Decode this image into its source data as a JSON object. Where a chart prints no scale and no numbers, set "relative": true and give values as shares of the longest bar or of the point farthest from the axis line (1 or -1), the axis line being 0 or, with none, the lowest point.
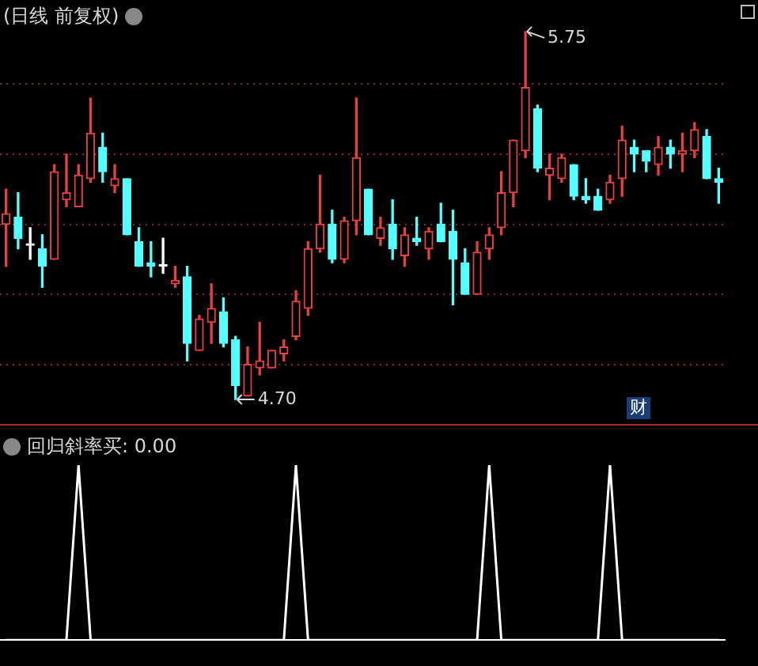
{
  "chart_data": [
    {
      "type": "candlestick",
      "title": "(日线 前复权)",
      "categories": [
        null,
        null,
        null,
        null,
        null,
        null,
        null,
        null,
        null,
        null,
        null,
        null,
        null,
        null,
        null,
        null,
        null,
        null,
        null,
        null,
        null,
        null,
        null,
        null,
        null,
        null,
        null,
        null,
        null,
        null,
        null,
        null,
        null,
        null,
        null,
        null,
        null,
        null,
        null,
        null,
        null,
        null,
        null,
        null,
        null,
        null,
        null,
        null,
        null,
        null,
        null,
        null,
        null,
        null,
        null,
        null,
        null,
        null,
        null,
        null
      ],
      "ohlc": [
        [
          5.2,
          5.3,
          5.08,
          5.23
        ],
        [
          5.22,
          5.29,
          5.13,
          5.16
        ],
        [
          5.14,
          5.19,
          5.1,
          5.14
        ],
        [
          5.13,
          5.17,
          5.02,
          5.08
        ],
        [
          5.1,
          5.37,
          5.1,
          5.35
        ],
        [
          5.27,
          5.4,
          5.25,
          5.29
        ],
        [
          5.25,
          5.37,
          5.25,
          5.34
        ],
        [
          5.33,
          5.56,
          5.32,
          5.46
        ],
        [
          5.42,
          5.46,
          5.32,
          5.35
        ],
        [
          5.31,
          5.37,
          5.29,
          5.33
        ],
        [
          5.33,
          5.33,
          5.17,
          5.17
        ],
        [
          5.15,
          5.19,
          5.08,
          5.08
        ],
        [
          5.09,
          5.15,
          5.05,
          5.08
        ],
        [
          5.08,
          5.16,
          5.06,
          5.08
        ],
        [
          5.03,
          5.08,
          5.02,
          5.04
        ],
        [
          5.05,
          5.08,
          4.81,
          4.86
        ],
        [
          4.84,
          4.94,
          4.84,
          4.93
        ],
        [
          4.92,
          5.03,
          4.86,
          4.96
        ],
        [
          4.95,
          4.99,
          4.85,
          4.86
        ],
        [
          4.87,
          4.88,
          4.7,
          4.74
        ],
        [
          4.71,
          4.85,
          4.71,
          4.8
        ],
        [
          4.79,
          4.92,
          4.77,
          4.81
        ],
        [
          4.79,
          4.84,
          4.79,
          4.84
        ],
        [
          4.83,
          4.87,
          4.81,
          4.85
        ],
        [
          4.88,
          5.01,
          4.87,
          4.98
        ],
        [
          4.96,
          5.15,
          4.94,
          5.13
        ],
        [
          5.13,
          5.34,
          5.12,
          5.2
        ],
        [
          5.2,
          5.24,
          5.09,
          5.1
        ],
        [
          5.1,
          5.22,
          5.09,
          5.21
        ],
        [
          5.21,
          5.56,
          5.17,
          5.39
        ],
        [
          5.3,
          5.3,
          5.17,
          5.17
        ],
        [
          5.16,
          5.22,
          5.14,
          5.19
        ],
        [
          5.2,
          5.27,
          5.1,
          5.13
        ],
        [
          5.11,
          5.19,
          5.08,
          5.17
        ],
        [
          5.16,
          5.22,
          5.14,
          5.15
        ],
        [
          5.13,
          5.19,
          5.1,
          5.18
        ],
        [
          5.2,
          5.26,
          5.15,
          5.15
        ],
        [
          5.18,
          5.24,
          4.97,
          5.1
        ],
        [
          5.09,
          5.13,
          5.0,
          5.0
        ],
        [
          5.0,
          5.15,
          5.0,
          5.12
        ],
        [
          5.13,
          5.19,
          5.1,
          5.17
        ],
        [
          5.19,
          5.35,
          5.17,
          5.29
        ],
        [
          5.29,
          5.44,
          5.25,
          5.44
        ],
        [
          5.41,
          5.75,
          5.39,
          5.59
        ],
        [
          5.53,
          5.54,
          5.35,
          5.36
        ],
        [
          5.34,
          5.4,
          5.27,
          5.36
        ],
        [
          5.33,
          5.4,
          5.32,
          5.39
        ],
        [
          5.37,
          5.37,
          5.27,
          5.28
        ],
        [
          5.28,
          5.33,
          5.26,
          5.27
        ],
        [
          5.28,
          5.3,
          5.24,
          5.24
        ],
        [
          5.27,
          5.34,
          5.26,
          5.32
        ],
        [
          5.33,
          5.48,
          5.28,
          5.44
        ],
        [
          5.42,
          5.44,
          5.35,
          5.4
        ],
        [
          5.41,
          5.41,
          5.35,
          5.38
        ],
        [
          5.37,
          5.45,
          5.34,
          5.42
        ],
        [
          5.42,
          5.44,
          5.36,
          5.4
        ],
        [
          5.4,
          5.46,
          5.35,
          5.41
        ],
        [
          5.41,
          5.49,
          5.39,
          5.47
        ],
        [
          5.45,
          5.47,
          5.33,
          5.33
        ],
        [
          5.33,
          5.36,
          5.26,
          5.32
        ]
      ],
      "colors": [
        "#e8403c",
        "#54ffff",
        "#ffffff",
        "#54ffff",
        "#e8403c",
        "#e8403c",
        "#e8403c",
        "#e8403c",
        "#54ffff",
        "#e8403c",
        "#54ffff",
        "#54ffff",
        "#54ffff",
        "#ffffff",
        "#e8403c",
        "#54ffff",
        "#e8403c",
        "#e8403c",
        "#54ffff",
        "#54ffff",
        "#e8403c",
        "#e8403c",
        "#e8403c",
        "#e8403c",
        "#e8403c",
        "#e8403c",
        "#e8403c",
        "#54ffff",
        "#e8403c",
        "#e8403c",
        "#54ffff",
        "#e8403c",
        "#54ffff",
        "#e8403c",
        "#54ffff",
        "#e8403c",
        "#54ffff",
        "#54ffff",
        "#54ffff",
        "#e8403c",
        "#e8403c",
        "#e8403c",
        "#e8403c",
        "#e8403c",
        "#54ffff",
        "#e8403c",
        "#e8403c",
        "#54ffff",
        "#54ffff",
        "#54ffff",
        "#e8403c",
        "#e8403c",
        "#54ffff",
        "#54ffff",
        "#e8403c",
        "#54ffff",
        "#e8403c",
        "#e8403c",
        "#54ffff",
        "#54ffff"
      ],
      "ylim": [
        4.63,
        5.84
      ],
      "yticks": [
        {
          "value": 4.8,
          "label": null
        },
        {
          "value": 5.0,
          "label": null
        },
        {
          "value": 5.2,
          "label": null
        },
        {
          "value": 5.4,
          "label": null
        },
        {
          "value": 5.6,
          "label": null
        }
      ],
      "grid": "y",
      "legend": false,
      "annotations": [
        "5.75",
        "4.70",
        "财"
      ]
    },
    {
      "type": "line",
      "title": "回归斜率买: 0.00",
      "relative": true,
      "legend": false,
      "marker": "none",
      "categories": [
        null,
        null,
        null,
        null,
        null,
        null,
        null,
        null,
        null,
        null,
        null,
        null,
        null,
        null,
        null,
        null,
        null,
        null,
        null,
        null,
        null,
        null,
        null,
        null,
        null,
        null,
        null,
        null,
        null,
        null,
        null,
        null,
        null,
        null,
        null,
        null,
        null,
        null,
        null,
        null,
        null,
        null,
        null,
        null,
        null,
        null,
        null,
        null,
        null,
        null,
        null,
        null,
        null,
        null,
        null,
        null,
        null,
        null,
        null,
        null
      ],
      "series": [
        {
          "color": "#ffffff",
          "values": [
            0,
            0,
            0,
            0,
            0,
            0,
            1,
            0,
            0,
            0,
            0,
            0,
            0,
            0,
            0,
            0,
            0,
            0,
            0,
            0,
            0,
            0,
            0,
            0,
            1,
            0,
            0,
            0,
            0,
            0,
            0,
            0,
            0,
            0,
            0,
            0,
            0,
            0,
            0,
            0,
            1,
            0,
            0,
            0,
            0,
            0,
            0,
            0,
            0,
            0,
            1,
            0,
            0,
            0,
            0,
            0,
            0,
            0,
            0,
            0
          ]
        }
      ]
    }
  ]
}
